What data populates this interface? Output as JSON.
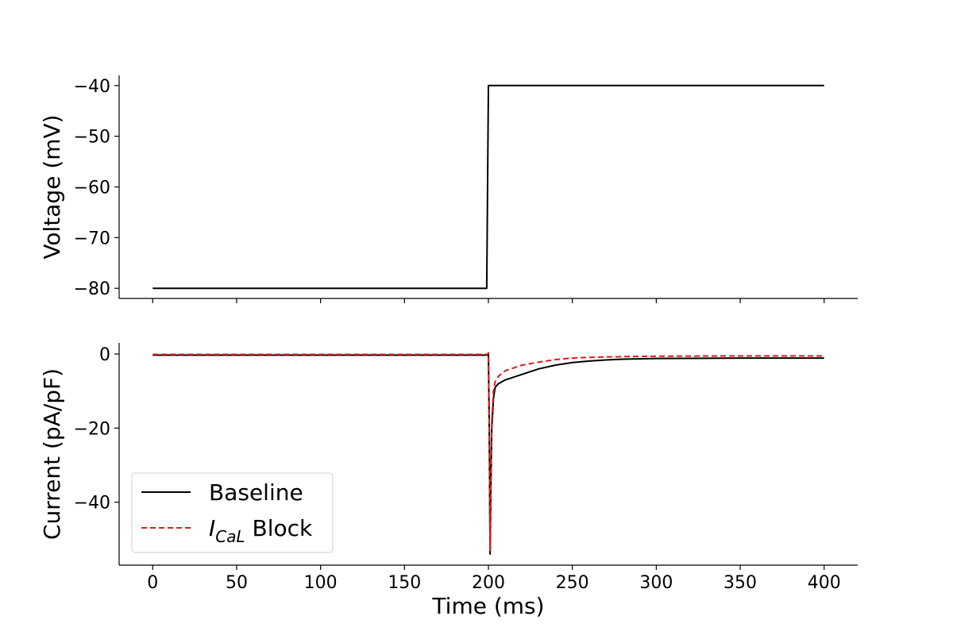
{
  "chart_data": [
    {
      "type": "line",
      "ylabel": "Voltage (mV)",
      "xlim": [
        -20,
        420
      ],
      "ylim": [
        -82,
        -38
      ],
      "x_ticks": [
        0,
        50,
        100,
        150,
        200,
        250,
        300,
        350,
        400
      ],
      "y_ticks": [
        -80,
        -70,
        -60,
        -50,
        -40
      ],
      "y_tick_labels": [
        "−80",
        "−70",
        "−60",
        "−50",
        "−40"
      ],
      "show_x_tick_labels": false,
      "grid": false,
      "series": [
        {
          "color": "#000000",
          "dash": "solid",
          "x": [
            0,
            199,
            200,
            400
          ],
          "y": [
            -80,
            -80,
            -40,
            -40
          ]
        }
      ]
    },
    {
      "type": "line",
      "xlabel": "Time (ms)",
      "ylabel": "Current (pA/pF)",
      "xlim": [
        -20,
        420
      ],
      "ylim": [
        -57,
        3
      ],
      "x_ticks": [
        0,
        50,
        100,
        150,
        200,
        250,
        300,
        350,
        400
      ],
      "x_tick_labels": [
        "0",
        "50",
        "100",
        "150",
        "200",
        "250",
        "300",
        "350",
        "400"
      ],
      "y_ticks": [
        -40,
        -20,
        0
      ],
      "y_tick_labels": [
        "−40",
        "−20",
        "0"
      ],
      "grid": false,
      "legend": {
        "placement": "lower-left",
        "entries": [
          {
            "label": "Baseline",
            "color": "#000000",
            "dash": "solid"
          },
          {
            "label_main": "I",
            "label_sub": "CaL",
            "label_rest": " Block",
            "color": "#e41a1c",
            "dash": "dashed"
          }
        ]
      },
      "series": [
        {
          "name": "Baseline",
          "color": "#000000",
          "dash": "solid",
          "x": [
            0,
            199.5,
            200,
            200.5,
            201,
            201.5,
            202,
            203,
            204,
            206,
            210,
            220,
            230,
            240,
            250,
            260,
            270,
            280,
            300,
            350,
            400
          ],
          "y": [
            -0.3,
            -0.3,
            0.3,
            -20,
            -54,
            -35,
            -20,
            -12,
            -9,
            -8,
            -7,
            -5.5,
            -4,
            -3,
            -2.3,
            -1.9,
            -1.6,
            -1.4,
            -1.2,
            -1.1,
            -1.1
          ]
        },
        {
          "name": "I_CaL Block",
          "color": "#e41a1c",
          "dash": "dashed",
          "x": [
            0,
            199.5,
            200,
            200.5,
            201,
            201.5,
            202,
            203,
            204,
            206,
            210,
            220,
            230,
            240,
            250,
            260,
            280,
            300,
            350,
            400
          ],
          "y": [
            -0.1,
            -0.1,
            0.3,
            -20,
            -53,
            -33,
            -18,
            -10,
            -7.5,
            -6,
            -4.5,
            -3,
            -2.2,
            -1.5,
            -1.1,
            -0.9,
            -0.7,
            -0.6,
            -0.5,
            -0.5
          ]
        }
      ]
    }
  ]
}
